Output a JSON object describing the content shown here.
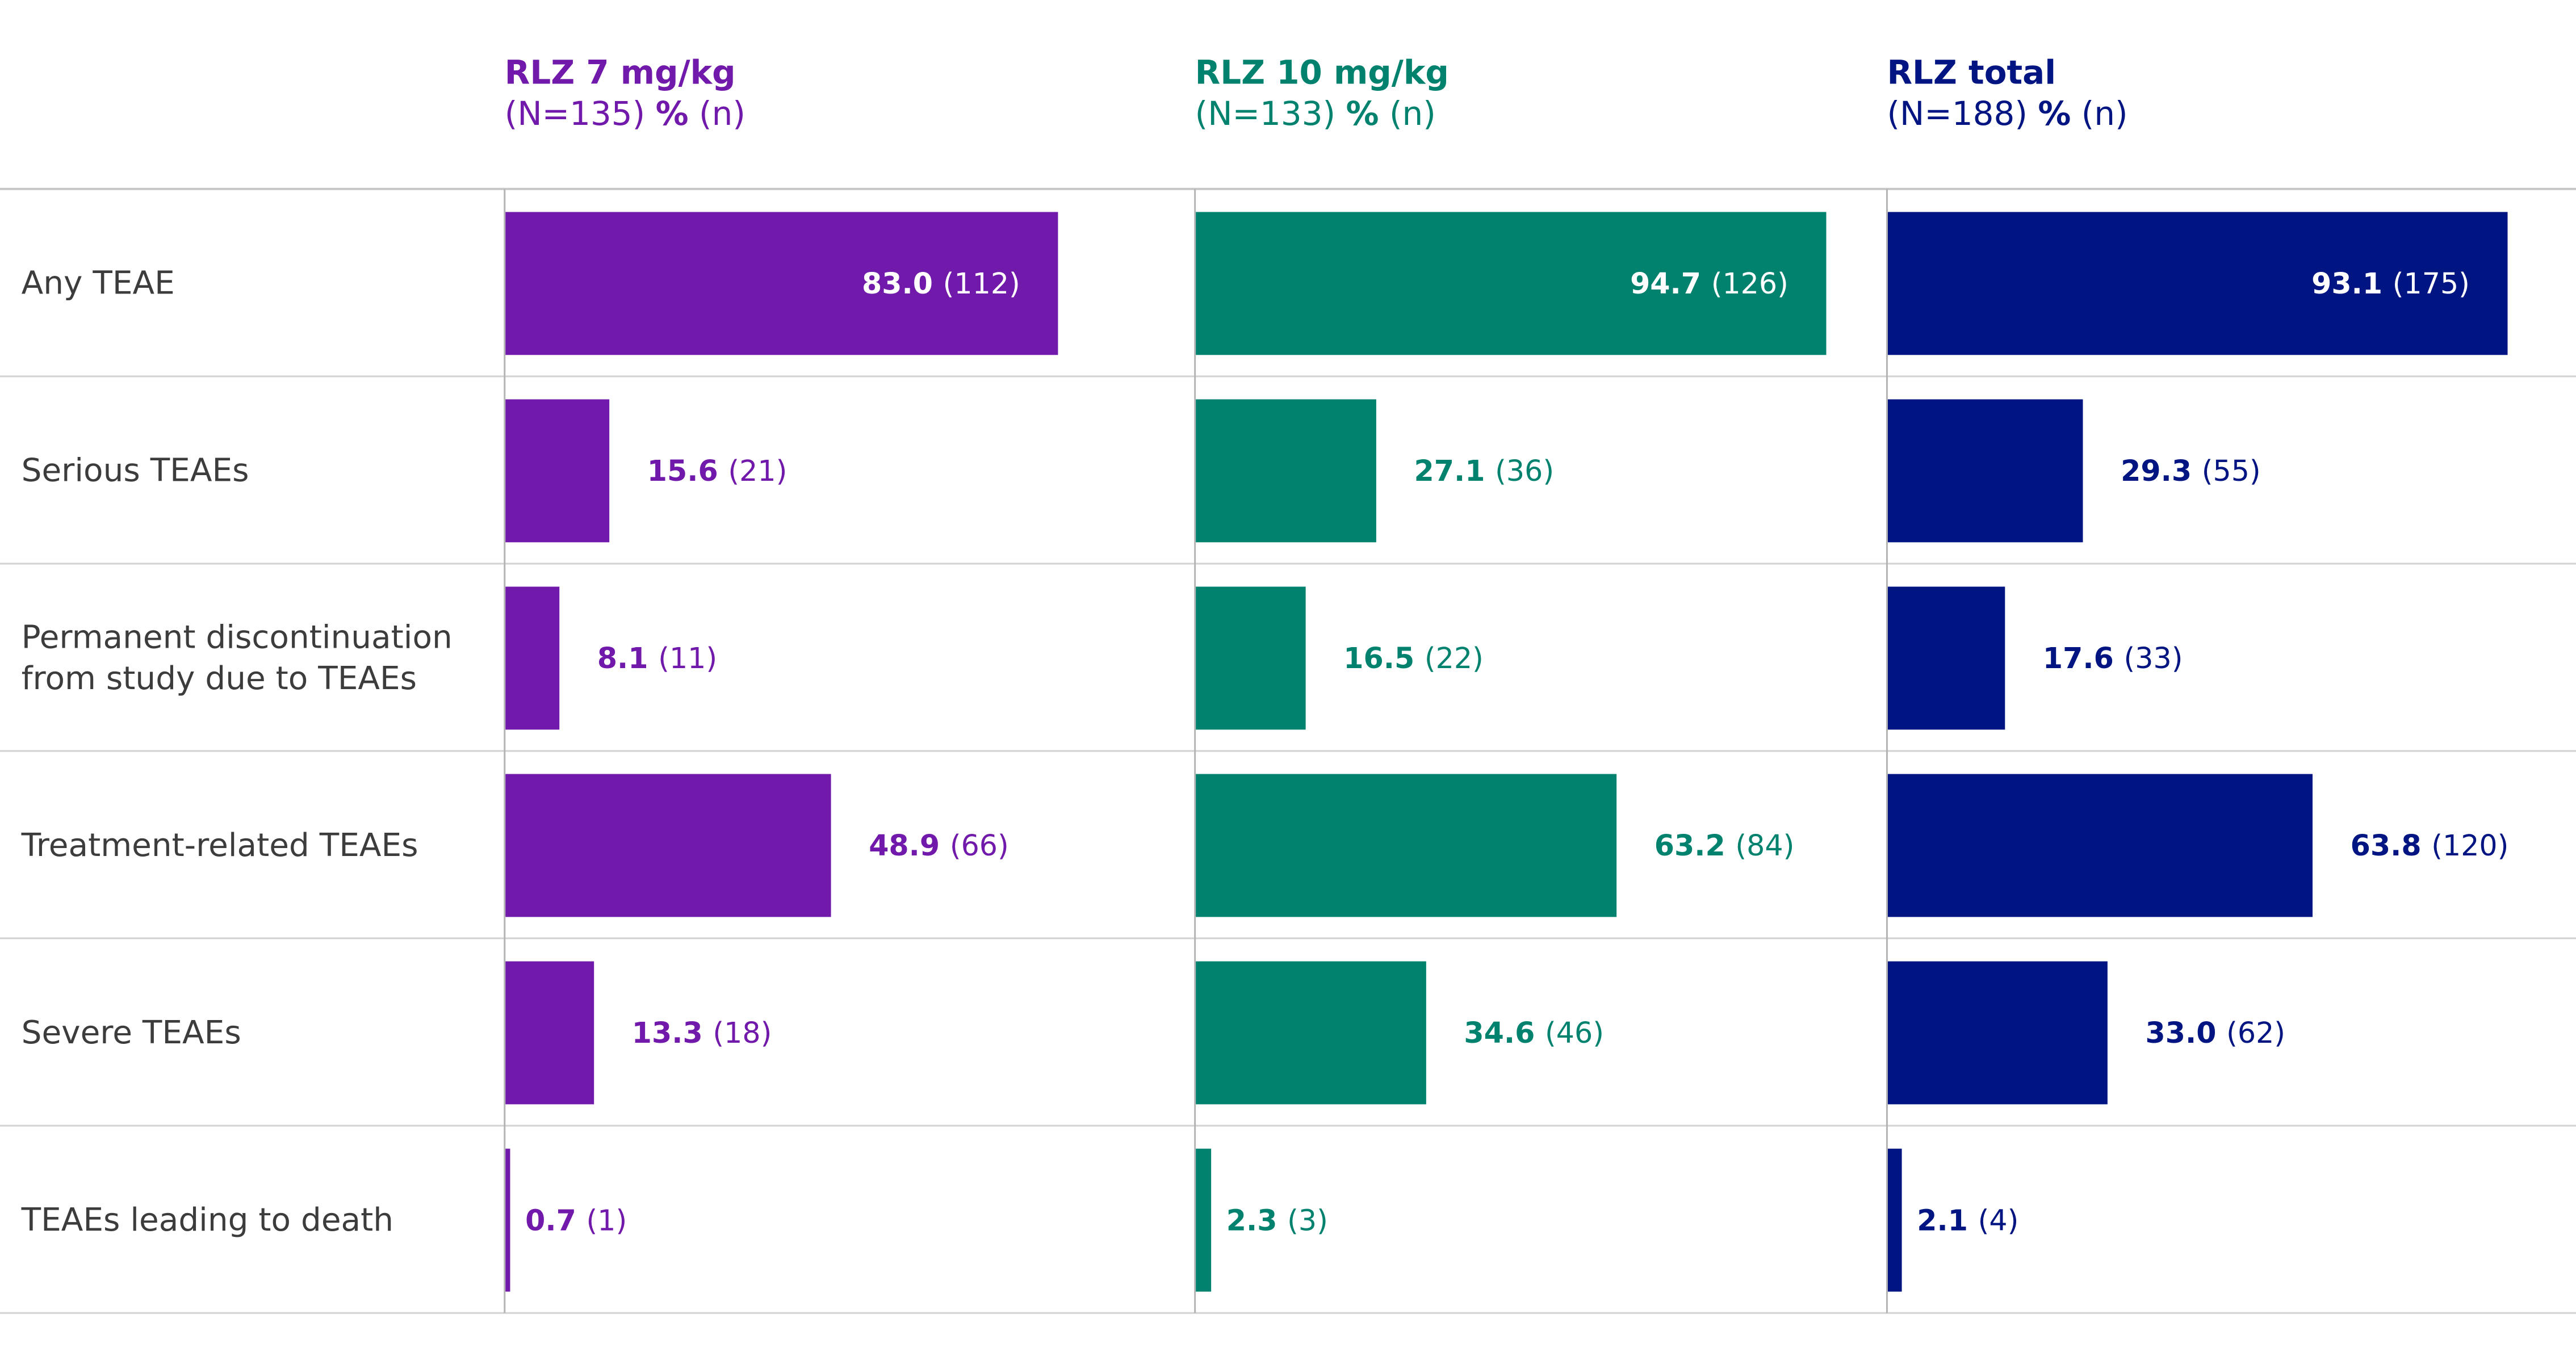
{
  "chart_data": {
    "type": "bar",
    "title": "",
    "xlabel": "",
    "ylabel": "",
    "xlim": [
      0,
      100
    ],
    "grid": false,
    "legend": "none",
    "categories": [
      [
        "Any TEAE"
      ],
      [
        "Serious TEAEs"
      ],
      [
        "Permanent discontinuation",
        "from study due to TEAEs"
      ],
      [
        "Treatment-related TEAEs"
      ],
      [
        "Severe TEAEs"
      ],
      [
        "TEAEs leading to death"
      ]
    ],
    "series": [
      {
        "name": "RLZ 7 mg/kg",
        "subtitle_prefix": "(N=135) ",
        "subtitle_bold": "%",
        "subtitle_suffix": " (n)",
        "color": "#7119aa",
        "values": [
          83.0,
          15.6,
          8.1,
          48.9,
          13.3,
          0.7
        ],
        "value_labels": [
          "83.0",
          "15.6",
          "8.1",
          "48.9",
          "13.3",
          "0.7"
        ],
        "counts": [
          "(112)",
          "(21)",
          "(11)",
          "(66)",
          "(18)",
          "(1)"
        ]
      },
      {
        "name": "RLZ 10 mg/kg",
        "subtitle_prefix": "(N=133) ",
        "subtitle_bold": "%",
        "subtitle_suffix": " (n)",
        "color": "#00826e",
        "values": [
          94.7,
          27.1,
          16.5,
          63.2,
          34.6,
          2.3
        ],
        "value_labels": [
          "94.7",
          "27.1",
          "16.5",
          "63.2",
          "34.6",
          "2.3"
        ],
        "counts": [
          "(126)",
          "(36)",
          "(22)",
          "(84)",
          "(46)",
          "(3)"
        ]
      },
      {
        "name": "RLZ total",
        "subtitle_prefix": "(N=188) ",
        "subtitle_bold": "%",
        "subtitle_suffix": " (n)",
        "color": "#001482",
        "values": [
          93.1,
          29.3,
          17.6,
          63.8,
          33.0,
          2.1
        ],
        "value_labels": [
          "93.1",
          "29.3",
          "17.6",
          "63.8",
          "33.0",
          "2.1"
        ],
        "counts": [
          "(175)",
          "(55)",
          "(33)",
          "(120)",
          "(62)",
          "(4)"
        ]
      }
    ]
  }
}
